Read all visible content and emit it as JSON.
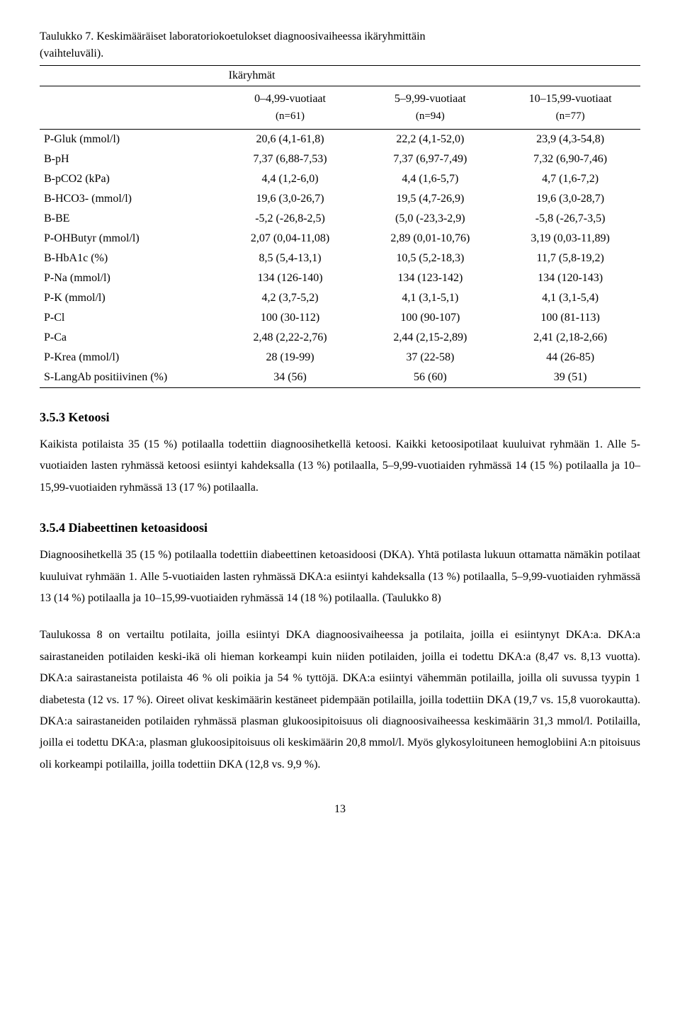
{
  "table": {
    "caption_line1": "Taulukko 7. Keskimääräiset laboratoriokoetulokset diagnoosivaiheessa ikäryhmittäin",
    "caption_line2": "(vaihteluväli).",
    "super_header": "Ikäryhmät",
    "groups": [
      {
        "label": "0–4,99-vuotiaat",
        "n": "(n=61)"
      },
      {
        "label": "5–9,99-vuotiaat",
        "n": "(n=94)"
      },
      {
        "label": "10–15,99-vuotiaat",
        "n": "(n=77)"
      }
    ],
    "rows": [
      {
        "label": "P-Gluk (mmol/l)",
        "v": [
          "20,6 (4,1-61,8)",
          "22,2 (4,1-52,0)",
          "23,9 (4,3-54,8)"
        ]
      },
      {
        "label": "B-pH",
        "v": [
          "7,37 (6,88-7,53)",
          "7,37 (6,97-7,49)",
          "7,32 (6,90-7,46)"
        ]
      },
      {
        "label": "B-pCO2 (kPa)",
        "v": [
          "4,4 (1,2-6,0)",
          "4,4 (1,6-5,7)",
          "4,7 (1,6-7,2)"
        ]
      },
      {
        "label": "B-HCO3- (mmol/l)",
        "v": [
          "19,6 (3,0-26,7)",
          "19,5 (4,7-26,9)",
          "19,6 (3,0-28,7)"
        ]
      },
      {
        "label": "B-BE",
        "v": [
          "-5,2 (-26,8-2,5)",
          "(5,0 (-23,3-2,9)",
          "-5,8 (-26,7-3,5)"
        ]
      },
      {
        "label": "P-OHButyr (mmol/l)",
        "v": [
          "2,07 (0,04-11,08)",
          "2,89 (0,01-10,76)",
          "3,19 (0,03-11,89)"
        ]
      },
      {
        "label": "B-HbA1c (%)",
        "v": [
          "8,5 (5,4-13,1)",
          "10,5 (5,2-18,3)",
          "11,7 (5,8-19,2)"
        ]
      },
      {
        "label": "P-Na (mmol/l)",
        "v": [
          "134 (126-140)",
          "134 (123-142)",
          "134 (120-143)"
        ]
      },
      {
        "label": "P-K (mmol/l)",
        "v": [
          "4,2 (3,7-5,2)",
          "4,1 (3,1-5,1)",
          "4,1 (3,1-5,4)"
        ]
      },
      {
        "label": "P-Cl",
        "v": [
          "100 (30-112)",
          "100 (90-107)",
          "100 (81-113)"
        ]
      },
      {
        "label": "P-Ca",
        "v": [
          "2,48 (2,22-2,76)",
          "2,44 (2,15-2,89)",
          "2,41 (2,18-2,66)"
        ]
      },
      {
        "label": "P-Krea (mmol/l)",
        "v": [
          "28 (19-99)",
          "37 (22-58)",
          "44 (26-85)"
        ]
      },
      {
        "label": "S-LangAb positiivinen (%)",
        "v": [
          "34 (56)",
          "56 (60)",
          "39 (51)"
        ]
      }
    ]
  },
  "sections": {
    "s1_title": "3.5.3 Ketoosi",
    "s1_body": "Kaikista potilaista 35 (15 %) potilaalla todettiin diagnoosihetkellä ketoosi. Kaikki ketoosipotilaat kuuluivat ryhmään 1. Alle 5-vuotiaiden lasten ryhmässä ketoosi esiintyi kahdeksalla (13 %) potilaalla, 5–9,99-vuotiaiden ryhmässä 14 (15 %) potilaalla ja 10–15,99-vuotiaiden ryhmässä 13 (17 %) potilaalla.",
    "s2_title": "3.5.4 Diabeettinen ketoasidoosi",
    "s2_body1": "Diagnoosihetkellä 35 (15 %) potilaalla todettiin diabeettinen ketoasidoosi (DKA). Yhtä potilasta lukuun ottamatta nämäkin potilaat kuuluivat ryhmään 1. Alle 5-vuotiaiden lasten ryhmässä DKA:a esiintyi kahdeksalla (13 %) potilaalla, 5–9,99-vuotiaiden ryhmässä 13 (14 %) potilaalla ja 10–15,99-vuotiaiden ryhmässä 14 (18 %) potilaalla. (Taulukko 8)",
    "s2_body2": "Taulukossa 8 on vertailtu potilaita, joilla esiintyi DKA diagnoosivaiheessa ja potilaita, joilla ei esiintynyt DKA:a. DKA:a sairastaneiden potilaiden keski-ikä oli hieman korkeampi kuin niiden potilaiden, joilla ei todettu DKA:a (8,47 vs. 8,13 vuotta). DKA:a sairastaneista potilaista 46 % oli poikia ja 54 % tyttöjä. DKA:a esiintyi vähemmän potilailla, joilla oli suvussa tyypin 1 diabetesta (12 vs. 17 %). Oireet olivat keskimäärin kestäneet pidempään potilailla, joilla todettiin DKA (19,7 vs. 15,8 vuorokautta). DKA:a sairastaneiden potilaiden ryhmässä plasman glukoosipitoisuus oli diagnoosivaiheessa keskimäärin 31,3 mmol/l. Potilailla, joilla ei todettu DKA:a, plasman glukoosipitoisuus oli keskimäärin 20,8 mmol/l. Myös glykosyloituneen hemoglobiini A:n pitoisuus oli korkeampi potilailla, joilla todettiin DKA (12,8 vs. 9,9 %)."
  },
  "page_number": "13"
}
